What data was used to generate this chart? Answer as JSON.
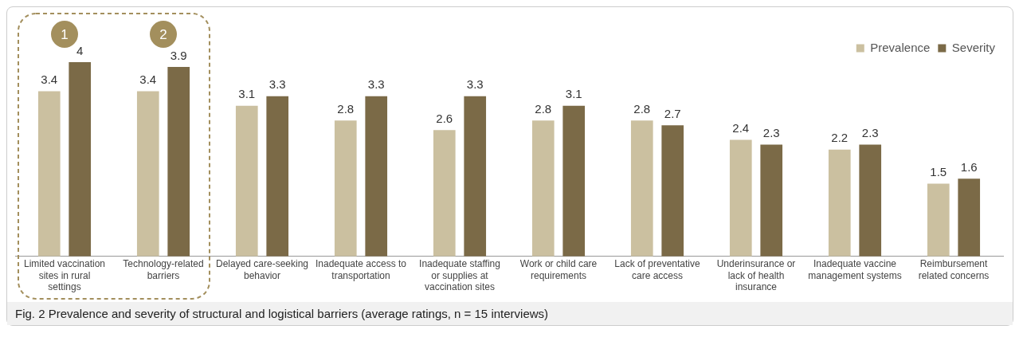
{
  "chart_data": {
    "type": "bar",
    "categories": [
      "Limited vaccination sites in rural settings",
      "Technology-related barriers",
      "Delayed care-seeking behavior",
      "Inadequate access to transportation",
      "Inadequate staffing or supplies at vaccination sites",
      "Work or child care requirements",
      "Lack of preventative care access",
      "Underinsurance or lack of health insurance",
      "Inadequate vaccine management systems",
      "Reimbursement related concerns"
    ],
    "series": [
      {
        "name": "Prevalence",
        "color": "#cbc0a0",
        "values": [
          3.4,
          3.4,
          3.1,
          2.8,
          2.6,
          2.8,
          2.8,
          2.4,
          2.2,
          1.5
        ]
      },
      {
        "name": "Severity",
        "color": "#7b6a47",
        "values": [
          4,
          3.9,
          3.3,
          3.3,
          3.3,
          3.1,
          2.7,
          2.3,
          2.3,
          1.6
        ]
      }
    ],
    "data_labels": true,
    "legend": "top right",
    "grid": false,
    "annotations": [
      "1",
      "2",
      "Fig. 2 Prevalence and severity of structural and logistical barriers (average ratings, n = 15 interviews)"
    ]
  }
}
